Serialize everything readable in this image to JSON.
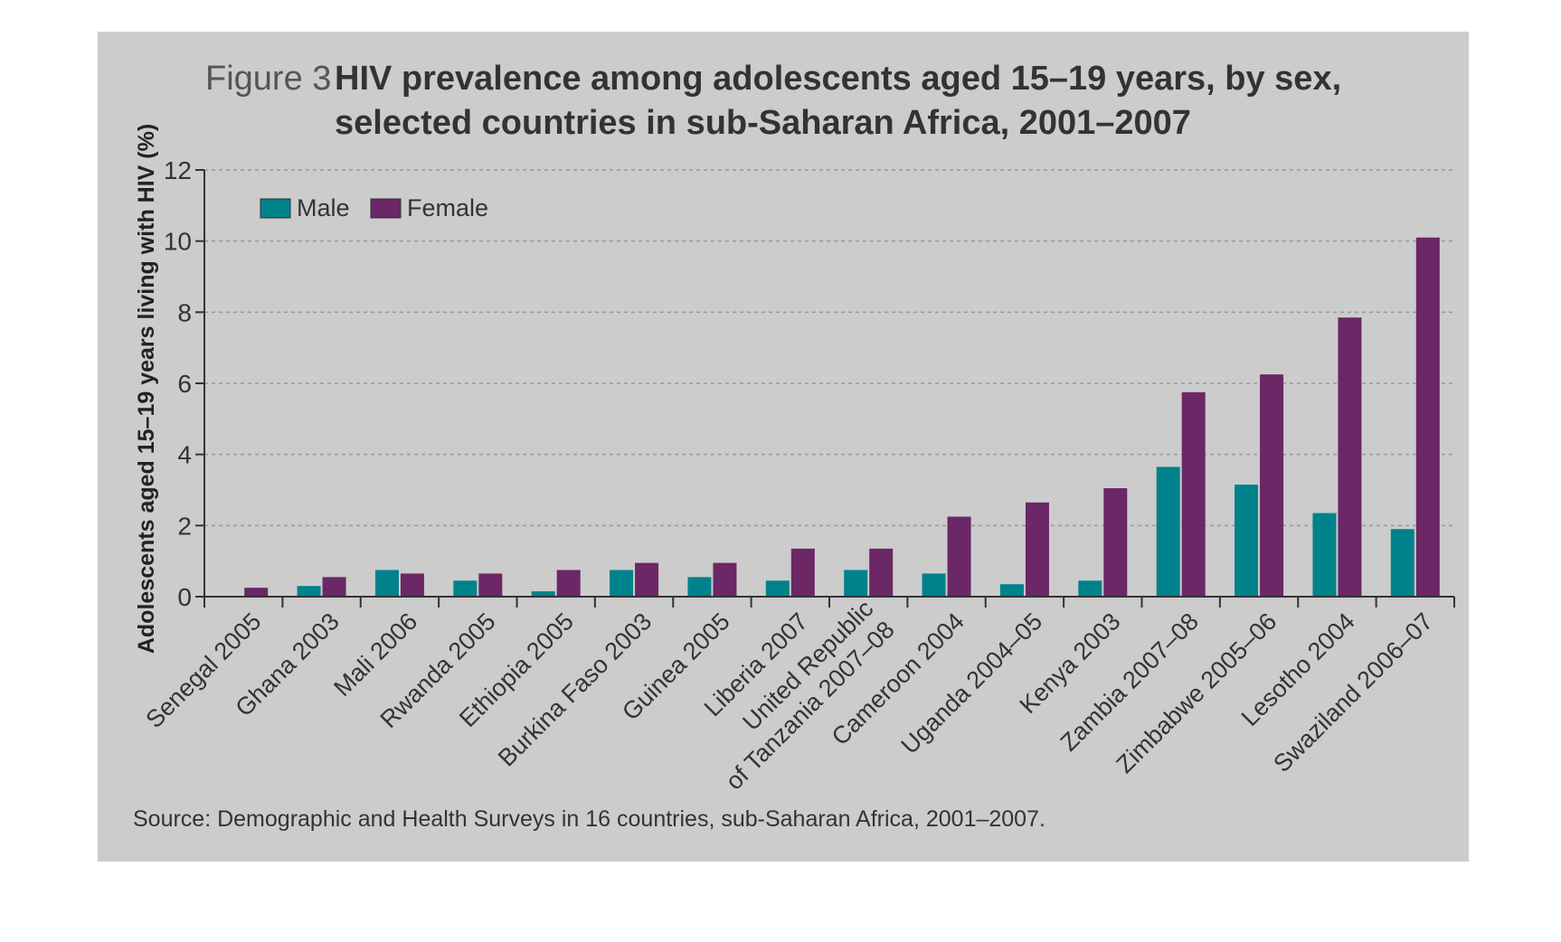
{
  "figure": {
    "label": "Figure 3",
    "title_line1": "HIV prevalence among adolescents aged 15–19 years, by sex,",
    "title_line2": "selected countries in sub-Saharan Africa, 2001–2007",
    "source": "Source: Demographic and Health Surveys in 16 countries, sub-Saharan Africa, 2001–2007."
  },
  "colors": {
    "background": "#cccccc",
    "male": "#00828c",
    "female": "#6b2766",
    "text": "#333333"
  },
  "chart_data": {
    "type": "bar",
    "title": "HIV prevalence among adolescents aged 15–19 years, by sex, selected countries in sub-Saharan Africa, 2001–2007",
    "ylabel": "Adolescents aged 15–19 years living with HIV (%)",
    "xlabel": "",
    "ylim": [
      0,
      12
    ],
    "yticks": [
      "0",
      "2",
      "4",
      "6",
      "8",
      "10",
      "12"
    ],
    "grid": true,
    "legend_position": "top-left",
    "categories": [
      [
        "Senegal 2005"
      ],
      [
        "Ghana 2003"
      ],
      [
        "Mali 2006"
      ],
      [
        "Rwanda 2005"
      ],
      [
        "Ethiopia 2005"
      ],
      [
        "Burkina Faso 2003"
      ],
      [
        "Guinea 2005"
      ],
      [
        "Liberia 2007"
      ],
      [
        "United Republic",
        "of Tanzania 2007–08"
      ],
      [
        "Cameroon 2004"
      ],
      [
        "Uganda 2004–05"
      ],
      [
        "Kenya 2003"
      ],
      [
        "Zambia 2007–08"
      ],
      [
        "Zimbabwe 2005–06"
      ],
      [
        "Lesotho 2004"
      ],
      [
        "Swaziland 2006–07"
      ]
    ],
    "series": [
      {
        "name": "Male",
        "color": "#00828c",
        "values": [
          0.0,
          0.3,
          0.75,
          0.45,
          0.15,
          0.75,
          0.55,
          0.45,
          0.75,
          0.65,
          0.35,
          0.45,
          3.65,
          3.15,
          2.35,
          1.9
        ]
      },
      {
        "name": "Female",
        "color": "#6b2766",
        "values": [
          0.25,
          0.55,
          0.65,
          0.65,
          0.75,
          0.95,
          0.95,
          1.35,
          1.35,
          2.25,
          2.65,
          3.05,
          5.75,
          6.25,
          7.85,
          10.1
        ]
      }
    ]
  }
}
